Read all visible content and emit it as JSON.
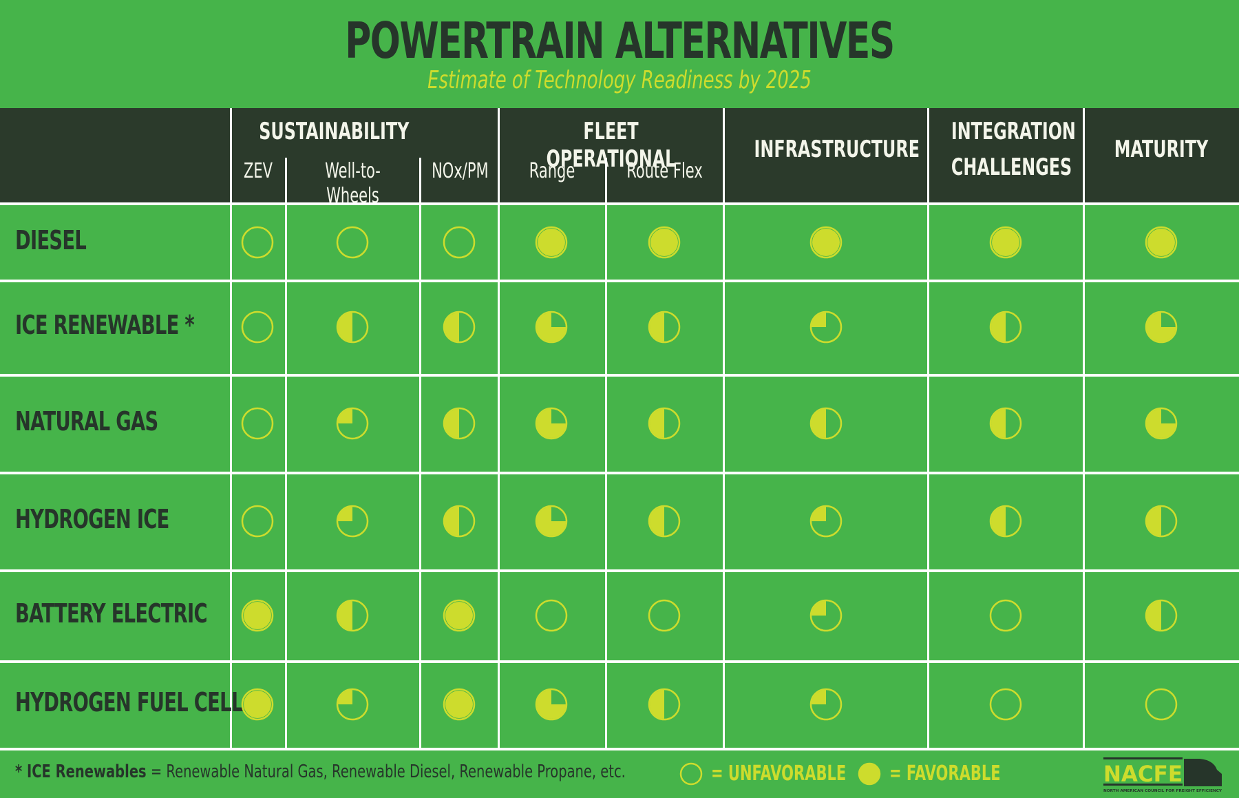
{
  "title": "POWERTRAIN ALTERNATIVES",
  "subtitle": "Estimate of Technology Readiness by 2025",
  "colors": {
    "background": "#46b44a",
    "header_bg": "#2b3a2b",
    "text_dark": "#26352a",
    "accent_yellow": "#cddc2d",
    "grid_line": "#ffffff"
  },
  "header": {
    "groups": [
      {
        "label": "SUSTAINABILITY",
        "subcolumns": [
          "ZEV",
          "Well-to-Wheels",
          "NOx/PM"
        ]
      },
      {
        "label": "FLEET OPERATIONAL",
        "subcolumns": [
          "Range",
          "Route Flex"
        ]
      },
      {
        "label": "INFRASTRUCTURE",
        "subcolumns": []
      },
      {
        "label_line1": "INTEGRATION",
        "label_line2": "CHALLENGES",
        "subcolumns": []
      },
      {
        "label": "MATURITY",
        "subcolumns": []
      }
    ]
  },
  "columns": [
    "ZEV",
    "Well-to-Wheels",
    "NOx/PM",
    "Range",
    "Route Flex",
    "Infrastructure",
    "Integration Challenges",
    "Maturity"
  ],
  "rows": [
    {
      "label": "DIESEL",
      "values": [
        0,
        0,
        0,
        100,
        100,
        100,
        100,
        100
      ]
    },
    {
      "label": "ICE RENEWABLE *",
      "values": [
        0,
        50,
        50,
        75,
        50,
        25,
        50,
        75
      ]
    },
    {
      "label": "NATURAL GAS",
      "values": [
        0,
        25,
        50,
        75,
        50,
        50,
        50,
        75
      ]
    },
    {
      "label": "HYDROGEN ICE",
      "values": [
        0,
        25,
        50,
        75,
        50,
        25,
        50,
        50
      ]
    },
    {
      "label": "BATTERY ELECTRIC",
      "values": [
        100,
        50,
        100,
        0,
        0,
        25,
        0,
        50
      ]
    },
    {
      "label": "HYDROGEN FUEL CELL",
      "values": [
        100,
        25,
        100,
        75,
        50,
        25,
        0,
        0
      ]
    }
  ],
  "footer": {
    "note_bold": "* ICE Renewables",
    "note_rest": " = Renewable Natural Gas, Renewable Diesel, Renewable Propane, etc.",
    "legend": [
      {
        "icon": "empty-circle-icon",
        "label": "= UNFAVORABLE"
      },
      {
        "icon": "filled-circle-icon",
        "label": "= FAVORABLE"
      }
    ],
    "logo_text": "NACFE",
    "logo_subtext": "NORTH AMERICAN COUNCIL FOR FREIGHT EFFICIENCY"
  }
}
